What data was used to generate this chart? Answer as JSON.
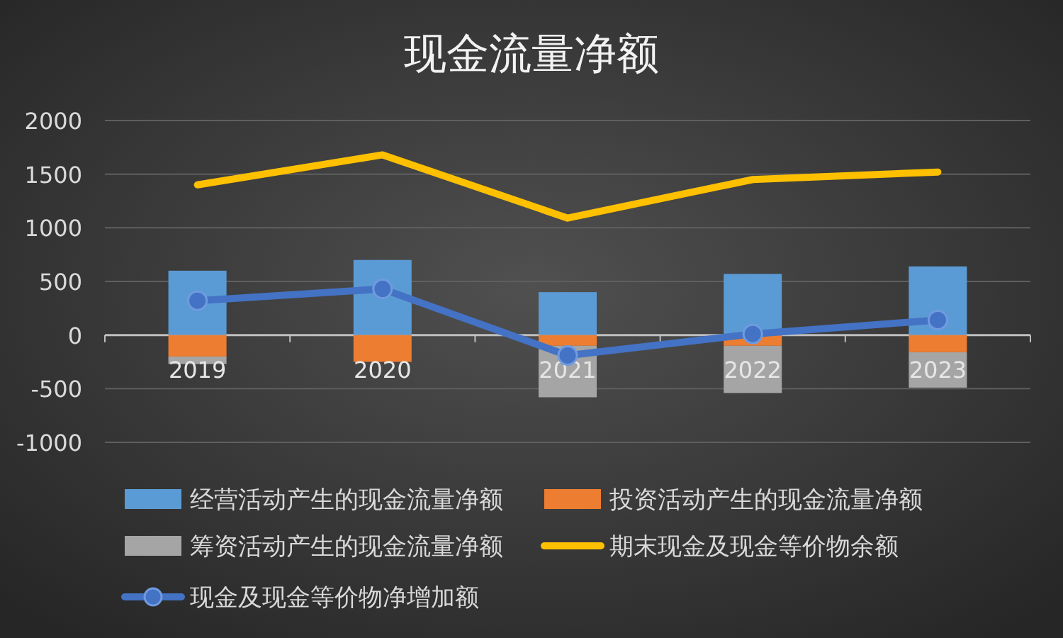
{
  "chart_data": {
    "type": "bar",
    "title": "现金流量净额",
    "categories": [
      "2019",
      "2020",
      "2021",
      "2022",
      "2023"
    ],
    "stacked": true,
    "series": [
      {
        "name": "经营活动产生的现金流量净额",
        "color": "#5b9bd5",
        "values": [
          600,
          700,
          400,
          570,
          640
        ]
      },
      {
        "name": "投资活动产生的现金流量净额",
        "color": "#ed7d31",
        "values": [
          -200,
          -250,
          -100,
          -100,
          -160
        ]
      },
      {
        "name": "筹资活动产生的现金流量净额",
        "color": "#a5a5a5",
        "values": [
          -70,
          0,
          -480,
          -440,
          -330
        ]
      },
      {
        "name": "期末现金及现金等价物余额",
        "type": "line",
        "color": "#ffc000",
        "values": [
          1400,
          1680,
          1090,
          1450,
          1520
        ]
      },
      {
        "name": "现金及现金等价物净增加额",
        "type": "line",
        "color": "#4472c4",
        "marker": "circle",
        "values": [
          320,
          430,
          -190,
          10,
          140
        ]
      }
    ],
    "ylim": [
      -1000,
      2000
    ],
    "yticks": [
      -1000,
      -500,
      0,
      500,
      1000,
      1500,
      2000
    ],
    "grid": "y",
    "legend": "bottom"
  }
}
